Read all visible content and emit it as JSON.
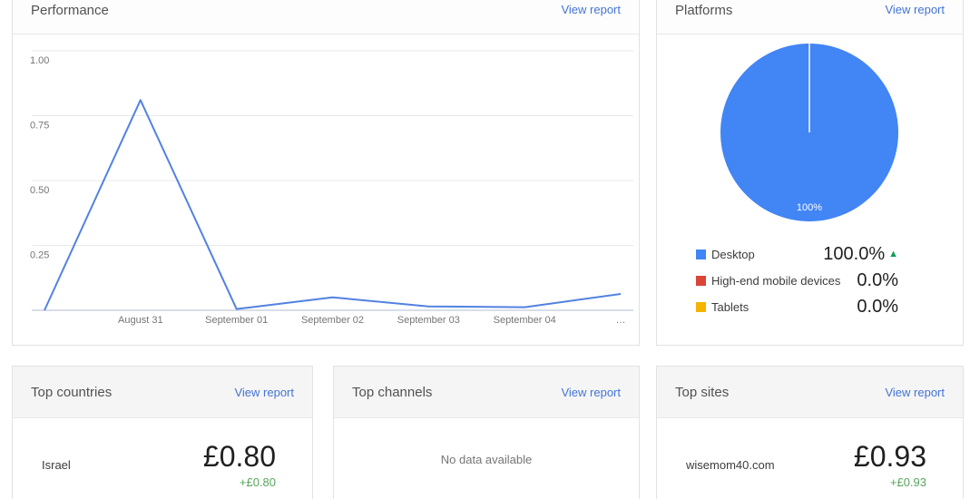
{
  "colors": {
    "link": "#4374d3",
    "positive": "#58a55c",
    "trend": "#0f9d58",
    "grid": "#e9e9e9",
    "axis": "#ccd3e0",
    "axis_text": "#757575"
  },
  "cards": {
    "performance": {
      "title": "Performance",
      "link_label": "View report"
    },
    "platforms": {
      "title": "Platforms",
      "link_label": "View report",
      "legend": [
        {
          "label": "Desktop",
          "value": "100.0%",
          "trend_icon": "▲"
        },
        {
          "label": "High-end mobile devices",
          "value": "0.0%"
        },
        {
          "label": "Tablets",
          "value": "0.0%"
        }
      ]
    },
    "top_countries": {
      "title": "Top countries",
      "link_label": "View report",
      "rows": [
        {
          "name": "Israel",
          "value": "£0.80",
          "delta": "+£0.80"
        }
      ]
    },
    "top_channels": {
      "title": "Top channels",
      "link_label": "View report",
      "empty_text": "No data available"
    },
    "top_sites": {
      "title": "Top sites",
      "link_label": "View report",
      "rows": [
        {
          "name": "wisemom40.com",
          "value": "£0.93",
          "delta": "+£0.93"
        }
      ]
    }
  },
  "chart_data": [
    {
      "type": "line",
      "title": "Performance",
      "categories": [
        "",
        "August 31",
        "September 01",
        "September 02",
        "September 03",
        "September 04",
        "…"
      ],
      "values": [
        0,
        0.81,
        0.005,
        0.05,
        0.015,
        0.012,
        0.063
      ],
      "yticks": [
        0.25,
        0.5,
        0.75,
        1.0
      ],
      "ylim": [
        0,
        1.0
      ],
      "xlabel": "",
      "ylabel": "",
      "grid": true,
      "legend_position": "none",
      "line_color": "#5282e0"
    },
    {
      "type": "pie",
      "title": "Platforms",
      "labels": [
        "Desktop",
        "High-end mobile devices",
        "Tablets"
      ],
      "values": [
        100.0,
        0.0,
        0.0
      ],
      "colors": [
        "#4285f4",
        "#db4437",
        "#f4b400"
      ],
      "slice_label": "100%",
      "legend_position": "bottom"
    }
  ]
}
